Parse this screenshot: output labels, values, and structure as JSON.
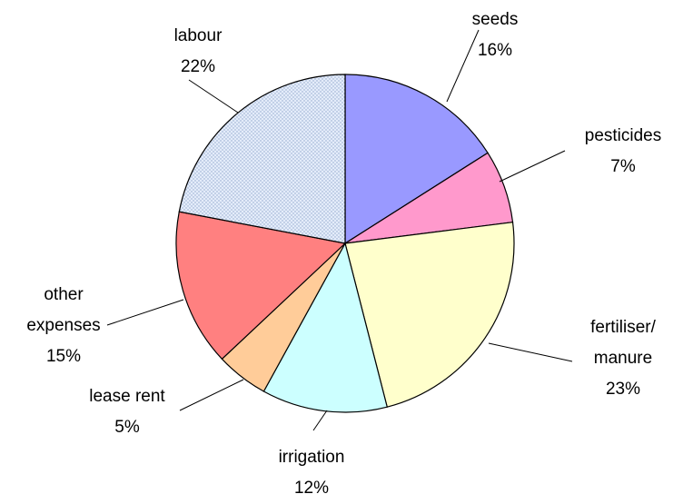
{
  "chart_data": {
    "type": "pie",
    "categories": [
      "seeds",
      "pesticides",
      "fertiliser/\nmanure",
      "irrigation",
      "lease rent",
      "other\nexpenses",
      "labour"
    ],
    "values": [
      16,
      7,
      23,
      12,
      5,
      15,
      22
    ],
    "value_labels": [
      "16%",
      "7%",
      "23%",
      "12%",
      "5%",
      "15%",
      "22%"
    ],
    "colors": [
      "#9999ff",
      "#ff99cc",
      "#ffffcc",
      "#ccffff",
      "#ffcc99",
      "#ff8080",
      "#dce6f7"
    ]
  }
}
